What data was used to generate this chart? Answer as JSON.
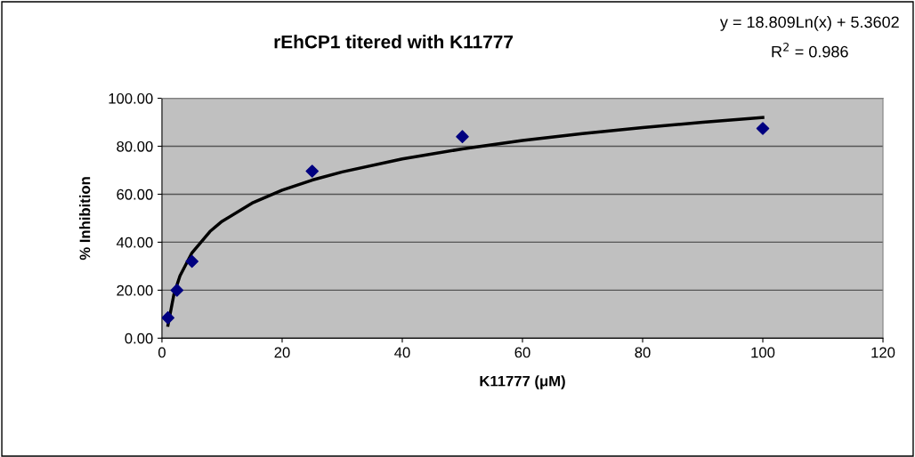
{
  "chart_data": {
    "type": "scatter",
    "title": "rEhCP1 titered with K11777",
    "xlabel": "K11777 (μM)",
    "ylabel": "% Inhibition",
    "annotations": [
      "y = 18.809Ln(x) + 5.3602",
      "R$^{2}$ = 0.986"
    ],
    "series": [
      {
        "color": "#000080",
        "marker": "diamond",
        "x": [
          1,
          2.5,
          5,
          25,
          50,
          100
        ],
        "values": [
          8.5,
          20,
          32,
          69.6,
          84,
          87.4
        ]
      },
      {
        "type": "line",
        "color": "#000000",
        "marker": "none",
        "line_style": "solid",
        "x": [
          1,
          2,
          3,
          5,
          8,
          10,
          15,
          20,
          25,
          30,
          40,
          50,
          60,
          70,
          80,
          90,
          100
        ],
        "values": [
          5.4,
          18.4,
          26,
          35.6,
          44.5,
          48.7,
          56.3,
          61.7,
          65.9,
          69.3,
          74.7,
          78.9,
          82.4,
          85.3,
          87.8,
          90,
          92
        ]
      }
    ],
    "xlim": [
      0,
      120
    ],
    "xticks": [
      0,
      20,
      40,
      60,
      80,
      100,
      120
    ],
    "ylim": [
      0,
      100
    ],
    "yticks": [
      {
        "value": 0,
        "label": "0.00"
      },
      {
        "value": 20,
        "label": "20.00"
      },
      {
        "value": 40,
        "label": "40.00"
      },
      {
        "value": 60,
        "label": "60.00"
      },
      {
        "value": 80,
        "label": "80.00"
      },
      {
        "value": 100,
        "label": "100.00"
      }
    ],
    "grid": "y",
    "legend": false
  }
}
